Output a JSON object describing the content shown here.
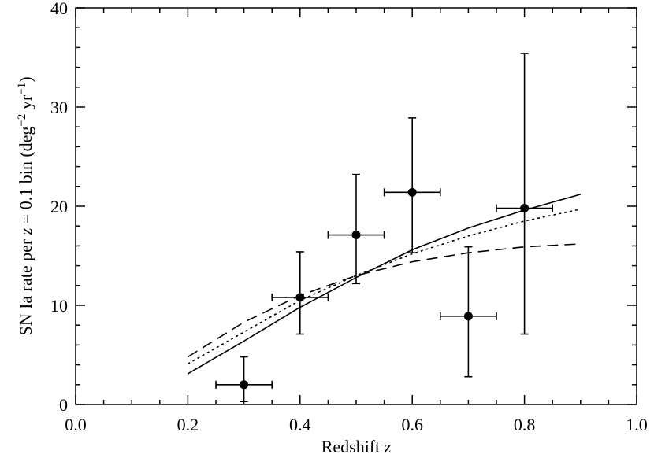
{
  "chart_data": {
    "type": "scatter",
    "title": "",
    "xlabel": "Redshift",
    "xlabel_var": "z",
    "ylabel_parts": {
      "prefix": "SN Ia rate per ",
      "var": "z",
      "mid": " = 0.1 bin  (deg",
      "sup1": "−2",
      "mid2": " yr",
      "sup2": "−1",
      "suffix": ")"
    },
    "xlim": [
      0.0,
      1.0
    ],
    "ylim": [
      0,
      40
    ],
    "x_ticks": [
      "0.0",
      "0.2",
      "0.4",
      "0.6",
      "0.8",
      "1.0"
    ],
    "y_ticks": [
      "0",
      "10",
      "20",
      "30",
      "40"
    ],
    "points": [
      {
        "x": 0.3,
        "y": 2.0,
        "xerr": 0.05,
        "ylo": 0.3,
        "yhi": 4.8
      },
      {
        "x": 0.4,
        "y": 10.8,
        "xerr": 0.05,
        "ylo": 7.1,
        "yhi": 15.4
      },
      {
        "x": 0.5,
        "y": 17.1,
        "xerr": 0.05,
        "ylo": 12.2,
        "yhi": 23.2
      },
      {
        "x": 0.6,
        "y": 21.4,
        "xerr": 0.05,
        "ylo": 15.3,
        "yhi": 28.9
      },
      {
        "x": 0.7,
        "y": 8.9,
        "xerr": 0.05,
        "ylo": 2.8,
        "yhi": 15.9
      },
      {
        "x": 0.8,
        "y": 19.8,
        "xerr": 0.05,
        "ylo": 7.1,
        "yhi": 35.4
      }
    ],
    "curves": [
      {
        "style": "solid",
        "x": [
          0.2,
          0.3,
          0.4,
          0.5,
          0.6,
          0.7,
          0.8,
          0.9
        ],
        "y": [
          3.1,
          6.4,
          9.8,
          12.8,
          15.6,
          17.8,
          19.6,
          21.2
        ]
      },
      {
        "style": "dotted",
        "x": [
          0.2,
          0.3,
          0.4,
          0.5,
          0.6,
          0.7,
          0.8,
          0.9
        ],
        "y": [
          4.1,
          7.3,
          10.5,
          13.0,
          15.2,
          17.0,
          18.5,
          19.7
        ]
      },
      {
        "style": "dashed",
        "x": [
          0.2,
          0.3,
          0.4,
          0.5,
          0.6,
          0.7,
          0.8,
          0.9
        ],
        "y": [
          4.8,
          8.3,
          11.0,
          13.0,
          14.4,
          15.3,
          15.9,
          16.2
        ]
      }
    ],
    "grid": false,
    "legend": "none"
  }
}
